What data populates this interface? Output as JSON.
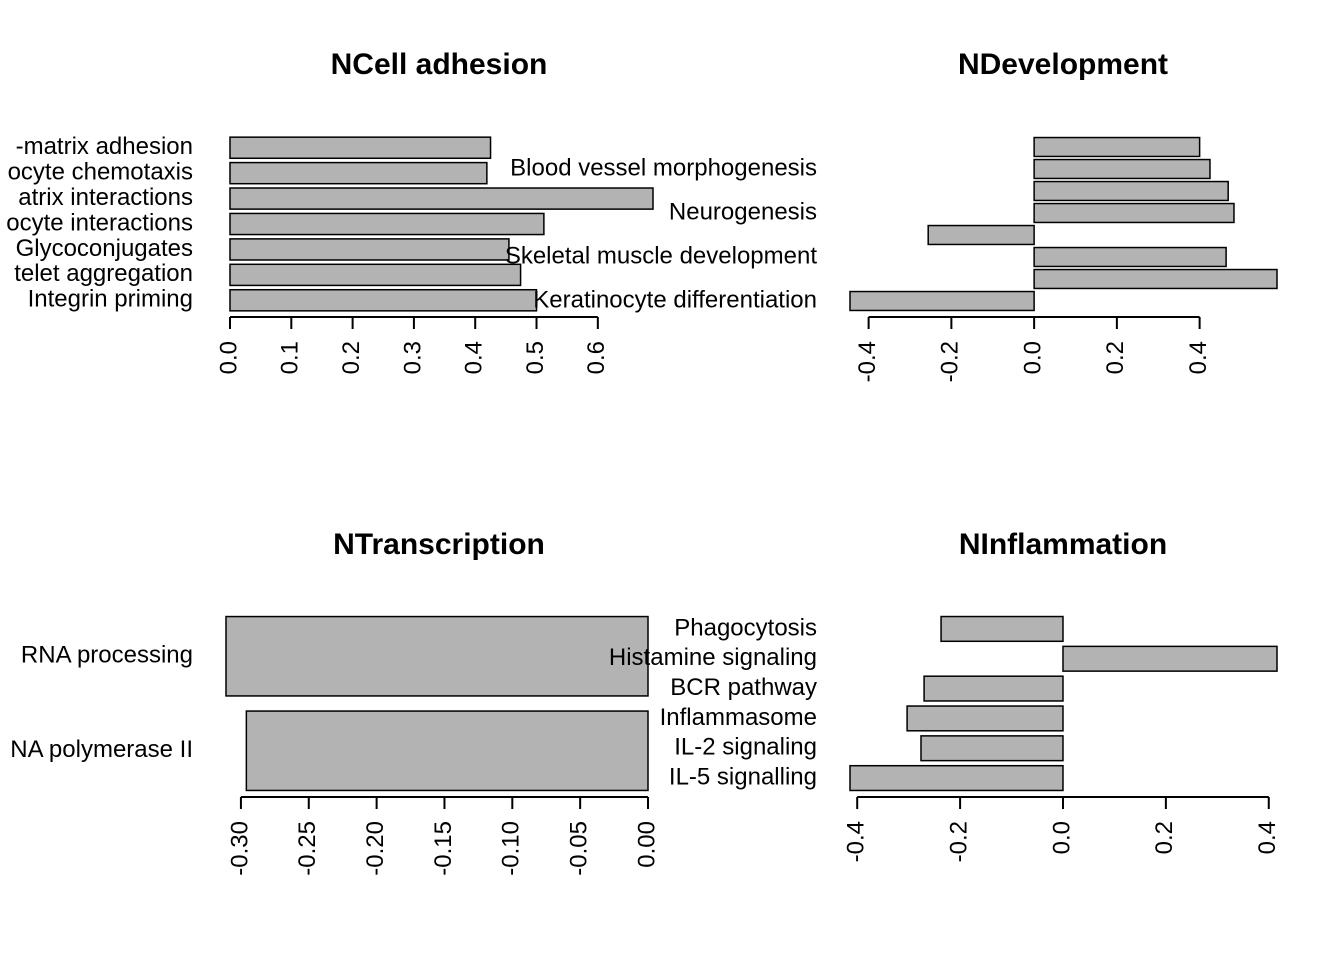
{
  "chart_data": [
    {
      "type": "bar",
      "orientation": "horizontal",
      "title": "NCell adhesion",
      "color": "#b3b3b3",
      "categories": [
        "-matrix adhesion",
        "ocyte chemotaxis",
        "atrix interactions",
        "ocyte interactions",
        "Glycoconjugates",
        "telet aggregation",
        "Integrin priming"
      ],
      "values": [
        0.425,
        0.419,
        0.69,
        0.512,
        0.455,
        0.474,
        0.5
      ],
      "xlim": [
        0,
        0.69
      ],
      "xticks": [
        {
          "value": 0,
          "label": "0.0"
        },
        0.1,
        0.2,
        0.3,
        0.4,
        0.5,
        0.6
      ]
    },
    {
      "type": "bar",
      "orientation": "horizontal",
      "title": "NDevelopment",
      "color": "#b3b3b3",
      "categories": [
        null,
        "Blood vessel morphogenesis",
        null,
        "Neurogenesis",
        null,
        "Skeletal muscle development",
        null,
        "Keratinocyte differentiation"
      ],
      "values": [
        0.4,
        0.425,
        0.469,
        0.483,
        -0.256,
        0.464,
        0.587,
        -0.445
      ],
      "xlim": [
        -0.445,
        0.587
      ],
      "xticks": [
        -0.4,
        -0.2,
        {
          "value": 0,
          "label": "0.0"
        },
        0.2,
        0.4
      ]
    },
    {
      "type": "bar",
      "orientation": "horizontal",
      "title": "NTranscription",
      "color": "#b3b3b3",
      "categories": [
        "RNA processing",
        "NA polymerase II"
      ],
      "values": [
        -0.311,
        -0.296
      ],
      "xlim": [
        -0.311,
        0
      ],
      "xticks": [
        {
          "value": -0.3,
          "label": "-0.30"
        },
        -0.25,
        {
          "value": -0.2,
          "label": "-0.20"
        },
        -0.15,
        {
          "value": -0.1,
          "label": "-0.10"
        },
        -0.05,
        {
          "value": 0,
          "label": "0.00"
        }
      ]
    },
    {
      "type": "bar",
      "orientation": "horizontal",
      "title": "NInflammation",
      "color": "#b3b3b3",
      "categories": [
        "Phagocytosis",
        "Histamine signaling",
        "BCR pathway",
        "Inflammasome",
        "IL-2 signaling",
        "IL-5 signalling"
      ],
      "values": [
        -0.237,
        0.416,
        -0.27,
        -0.303,
        -0.276,
        -0.414
      ],
      "xlim": [
        -0.414,
        0.416
      ],
      "xticks": [
        -0.4,
        -0.2,
        {
          "value": 0,
          "label": "0.0"
        },
        0.2,
        0.4
      ]
    }
  ]
}
